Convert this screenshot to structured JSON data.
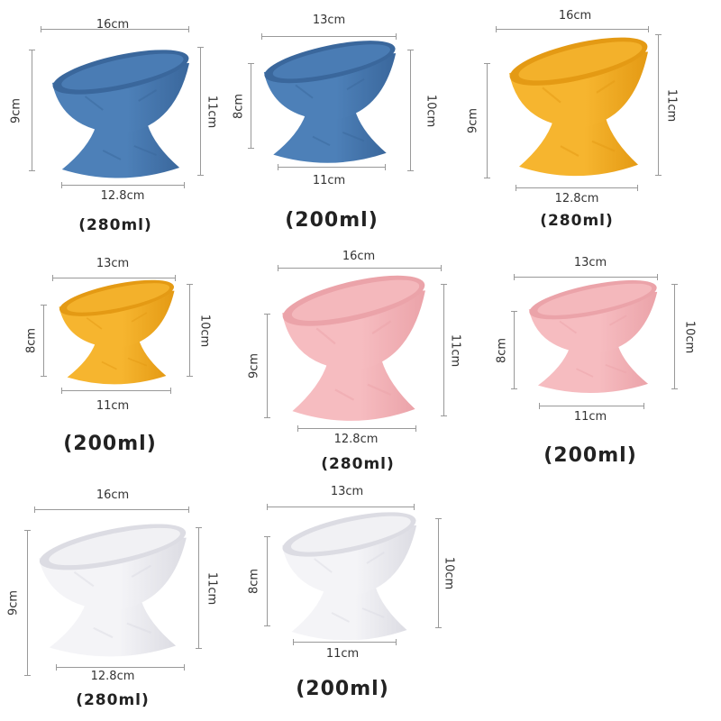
{
  "products": [
    {
      "color_name": "blue",
      "color": "#4d80b8",
      "shade": "#3a679c",
      "top": "16cm",
      "left": "9cm",
      "right": "11cm",
      "bottom": "12.8cm",
      "capacity": "(280ml)"
    },
    {
      "color_name": "blue",
      "color": "#4d80b8",
      "shade": "#3a679c",
      "top": "13cm",
      "left": "8cm",
      "right": "10cm",
      "bottom": "11cm",
      "capacity": "(200ml)"
    },
    {
      "color_name": "yellow",
      "color": "#f6b52f",
      "shade": "#e49a14",
      "top": "16cm",
      "left": "9cm",
      "right": "11cm",
      "bottom": "12.8cm",
      "capacity": "(280ml)"
    },
    {
      "color_name": "yellow",
      "color": "#f6b52f",
      "shade": "#e49a14",
      "top": "13cm",
      "left": "8cm",
      "right": "10cm",
      "bottom": "11cm",
      "capacity": "(200ml)"
    },
    {
      "color_name": "pink",
      "color": "#f6bcc0",
      "shade": "#eba3a9",
      "top": "16cm",
      "left": "9cm",
      "right": "11cm",
      "bottom": "12.8cm",
      "capacity": "(280ml)"
    },
    {
      "color_name": "pink",
      "color": "#f6bcc0",
      "shade": "#eba3a9",
      "top": "13cm",
      "left": "8cm",
      "right": "10cm",
      "bottom": "11cm",
      "capacity": "(200ml)"
    },
    {
      "color_name": "white",
      "color": "#f4f4f7",
      "shade": "#dcdce3",
      "top": "16cm",
      "left": "9cm",
      "right": "11cm",
      "bottom": "12.8cm",
      "capacity": "(280ml)"
    },
    {
      "color_name": "white",
      "color": "#f4f4f7",
      "shade": "#dcdce3",
      "top": "13cm",
      "left": "8cm",
      "right": "10cm",
      "bottom": "11cm",
      "capacity": "(200ml)"
    }
  ]
}
